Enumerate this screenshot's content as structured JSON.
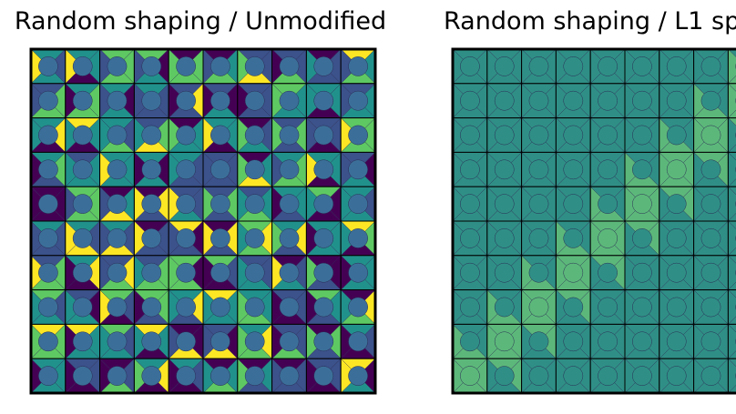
{
  "chart_data": [
    {
      "type": "heatmap",
      "title": "Random shaping / Unmodified",
      "grid_rows": 10,
      "grid_cols": 10,
      "cell_glyph": "four triangles per square cell plus a center circle",
      "colormap": "viridis",
      "description": "randomly shaded triangle values in every cell"
    },
    {
      "type": "heatmap",
      "title": "Random shaping / L1 sp",
      "grid_rows": 10,
      "grid_cols": 10,
      "cell_glyph": "four triangles per square cell plus a center circle",
      "colormap": "viridis",
      "description": "uniform teal background with a lighter green diagonal band from bottom-left to top-right"
    }
  ],
  "colors": {
    "frame": "#000000",
    "cell_border": "#000000",
    "viridis": [
      "#440154",
      "#3b528b",
      "#21918c",
      "#5ec962",
      "#fde725"
    ]
  }
}
